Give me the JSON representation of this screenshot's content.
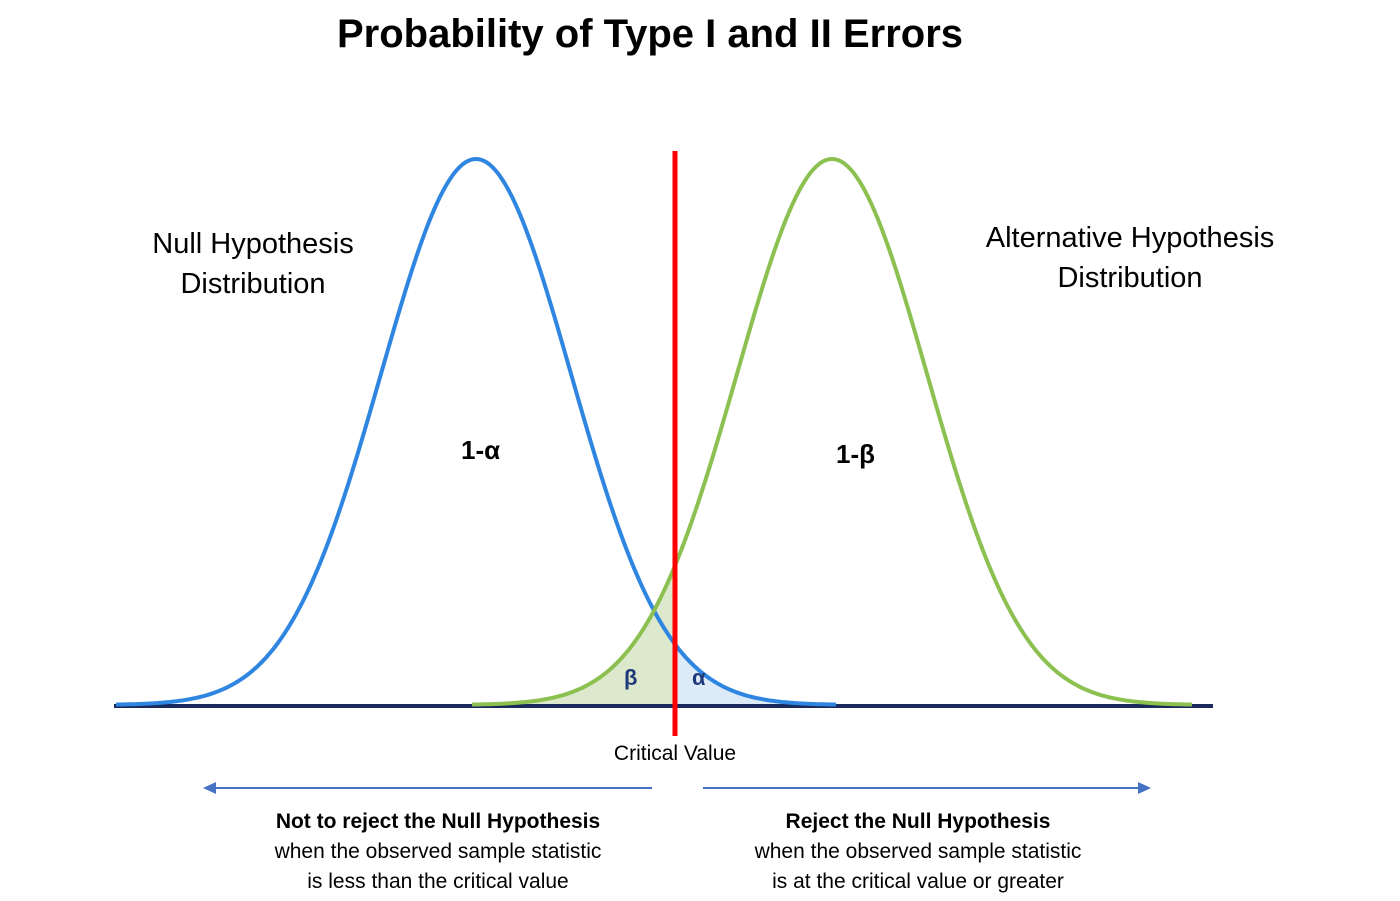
{
  "title": "Probability of Type I and II Errors",
  "null_dist": {
    "line1": "Null Hypothesis",
    "line2": "Distribution",
    "area_label": "1-α",
    "tail_label": "α",
    "color": "#2f86e0"
  },
  "alt_dist": {
    "line1": "Alternative Hypothesis",
    "line2": "Distribution",
    "area_label": "1-β",
    "tail_label": "β",
    "color": "#8cc152"
  },
  "critical_value": {
    "label": "Critical Value",
    "color": "#ff0000"
  },
  "left_decision": {
    "head": "Not to reject the Null Hypothesis",
    "line2": "when the observed sample statistic",
    "line3": "is less than the critical value"
  },
  "right_decision": {
    "head": "Reject the Null Hypothesis",
    "line2": "when the observed sample statistic",
    "line3": "is at the critical value or greater"
  },
  "colors": {
    "axis": "#1a2a5a",
    "arrow": "#4472c4",
    "alpha_fill": "#ddeaf7",
    "beta_fill": "#dde9cc"
  }
}
